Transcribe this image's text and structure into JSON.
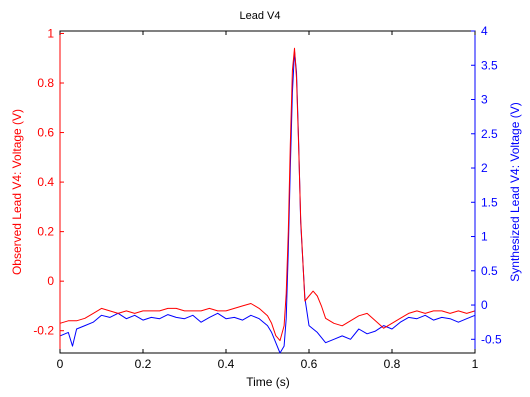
{
  "chart_data": {
    "type": "line",
    "title": "Lead V4",
    "xlabel": "Time (s)",
    "xlim": [
      0,
      1
    ],
    "xticks": [
      "0",
      "0.2",
      "0.4",
      "0.6",
      "0.8",
      "1"
    ],
    "left_axis": {
      "label": "Observed Lead V4: Voltage (V)",
      "color": "#ff0000",
      "ylim": [
        -0.29,
        1.01
      ],
      "ticks": [
        "-0.2",
        "0",
        "0.2",
        "0.4",
        "0.6",
        "0.8",
        "1"
      ]
    },
    "right_axis": {
      "label": "Synthesized Lead V4: Voltage (V)",
      "color": "#0000ff",
      "ylim": [
        -0.7,
        4.0
      ],
      "ticks": [
        "-0.5",
        "0",
        "0.5",
        "1",
        "1.5",
        "2",
        "2.5",
        "3",
        "3.5",
        "4"
      ]
    },
    "series": [
      {
        "axis": "left",
        "color": "#ff0000",
        "x": [
          0,
          0.02,
          0.04,
          0.06,
          0.08,
          0.1,
          0.12,
          0.14,
          0.16,
          0.18,
          0.2,
          0.22,
          0.24,
          0.26,
          0.28,
          0.3,
          0.32,
          0.34,
          0.36,
          0.38,
          0.4,
          0.42,
          0.44,
          0.46,
          0.48,
          0.5,
          0.51,
          0.52,
          0.53,
          0.54,
          0.545,
          0.55,
          0.555,
          0.56,
          0.565,
          0.57,
          0.575,
          0.58,
          0.59,
          0.6,
          0.61,
          0.62,
          0.63,
          0.64,
          0.66,
          0.68,
          0.7,
          0.72,
          0.74,
          0.76,
          0.78,
          0.8,
          0.82,
          0.84,
          0.86,
          0.88,
          0.9,
          0.92,
          0.94,
          0.96,
          0.98,
          1.0
        ],
        "y": [
          -0.17,
          -0.16,
          -0.16,
          -0.15,
          -0.13,
          -0.11,
          -0.12,
          -0.13,
          -0.12,
          -0.13,
          -0.12,
          -0.12,
          -0.12,
          -0.11,
          -0.11,
          -0.12,
          -0.12,
          -0.12,
          -0.11,
          -0.12,
          -0.12,
          -0.11,
          -0.1,
          -0.09,
          -0.11,
          -0.14,
          -0.17,
          -0.22,
          -0.24,
          -0.18,
          -0.05,
          0.2,
          0.55,
          0.85,
          0.94,
          0.82,
          0.55,
          0.25,
          -0.08,
          -0.06,
          -0.04,
          -0.06,
          -0.1,
          -0.15,
          -0.17,
          -0.18,
          -0.16,
          -0.14,
          -0.13,
          -0.16,
          -0.19,
          -0.17,
          -0.15,
          -0.13,
          -0.12,
          -0.13,
          -0.12,
          -0.12,
          -0.13,
          -0.12,
          -0.13,
          -0.12
        ]
      },
      {
        "axis": "right",
        "color": "#0000ff",
        "x": [
          0,
          0.02,
          0.03,
          0.04,
          0.06,
          0.08,
          0.1,
          0.12,
          0.14,
          0.16,
          0.18,
          0.2,
          0.22,
          0.24,
          0.26,
          0.28,
          0.3,
          0.32,
          0.34,
          0.36,
          0.38,
          0.4,
          0.42,
          0.44,
          0.46,
          0.48,
          0.5,
          0.51,
          0.52,
          0.53,
          0.54,
          0.545,
          0.55,
          0.555,
          0.56,
          0.565,
          0.57,
          0.575,
          0.58,
          0.59,
          0.6,
          0.62,
          0.64,
          0.66,
          0.68,
          0.7,
          0.72,
          0.74,
          0.76,
          0.78,
          0.8,
          0.82,
          0.84,
          0.86,
          0.88,
          0.9,
          0.92,
          0.94,
          0.96,
          0.98,
          1.0
        ],
        "y": [
          -0.45,
          -0.4,
          -0.6,
          -0.35,
          -0.3,
          -0.25,
          -0.15,
          -0.18,
          -0.12,
          -0.2,
          -0.15,
          -0.22,
          -0.18,
          -0.2,
          -0.14,
          -0.18,
          -0.2,
          -0.15,
          -0.25,
          -0.18,
          -0.12,
          -0.2,
          -0.18,
          -0.22,
          -0.15,
          -0.2,
          -0.3,
          -0.4,
          -0.55,
          -0.7,
          -0.6,
          -0.2,
          0.8,
          2.0,
          3.1,
          3.7,
          3.4,
          2.4,
          1.2,
          0.1,
          -0.3,
          -0.4,
          -0.55,
          -0.5,
          -0.45,
          -0.5,
          -0.35,
          -0.42,
          -0.38,
          -0.3,
          -0.35,
          -0.25,
          -0.18,
          -0.2,
          -0.15,
          -0.22,
          -0.18,
          -0.2,
          -0.25,
          -0.2,
          -0.15
        ]
      }
    ]
  }
}
